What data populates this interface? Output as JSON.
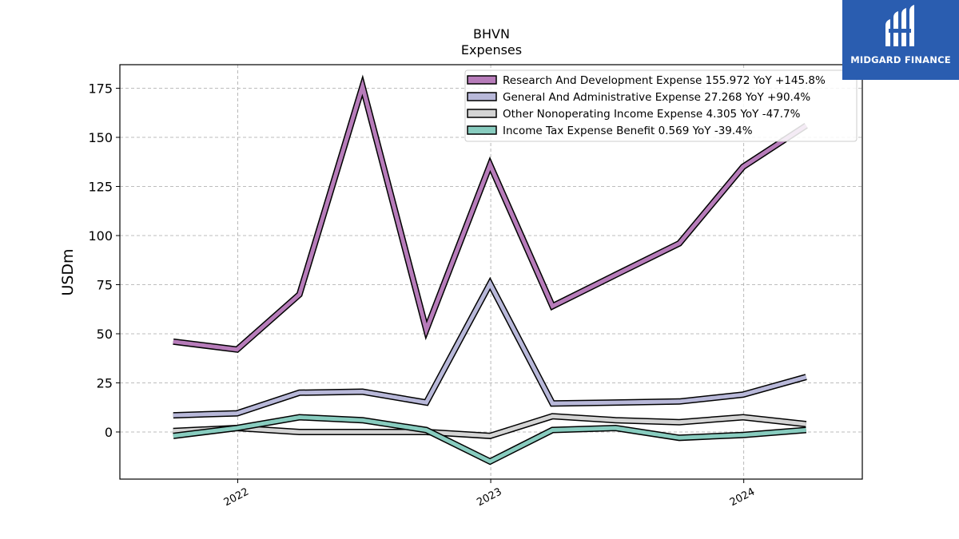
{
  "chart_data": {
    "type": "line",
    "title": [
      "BHVN",
      "Expenses"
    ],
    "ylabel": "USDm",
    "xlabel": "",
    "xlim": [
      "2021-07-15",
      "2024-06-20"
    ],
    "ylim": [
      -24,
      187
    ],
    "yticks": [
      0,
      25,
      50,
      75,
      100,
      125,
      150,
      175
    ],
    "xticks": [
      {
        "date": "2022-01-01",
        "label": "2022"
      },
      {
        "date": "2023-01-01",
        "label": "2023"
      },
      {
        "date": "2024-01-01",
        "label": "2024"
      }
    ],
    "grid": true,
    "legend_position": "top-right",
    "x": [
      "2021-09-30",
      "2021-12-31",
      "2022-03-31",
      "2022-06-30",
      "2022-09-30",
      "2022-12-31",
      "2023-03-31",
      "2023-06-30",
      "2023-09-30",
      "2023-12-31",
      "2024-03-31"
    ],
    "series": [
      {
        "name": "Research And Development Expense",
        "legend": "Research And Development Expense  155.972 YoY +145.8%",
        "color": "#b77cba",
        "values": [
          46,
          42,
          70,
          176,
          52,
          136,
          64,
          80,
          96,
          135,
          156
        ]
      },
      {
        "name": "General And Administrative Expense",
        "legend": "General And Administrative Expense  27.268 YoY +90.4%",
        "color": "#b8b8d9",
        "values": [
          8.5,
          9.5,
          20,
          20.5,
          15,
          75.5,
          14.5,
          15,
          15.5,
          19,
          28
        ]
      },
      {
        "name": "Other Nonoperating Income Expense",
        "legend": "Other Nonoperating Income Expense  4.305 YoY -47.7%",
        "color": "#d4d4d4",
        "values": [
          0.5,
          2,
          0,
          0,
          0,
          -2,
          8,
          6,
          5,
          7.5,
          4
        ]
      },
      {
        "name": "Income Tax Expense Benefit",
        "legend": "Income Tax Expense Benefit  0.569 YoY -39.4%",
        "color": "#88ccbf",
        "values": [
          -2,
          2,
          7.5,
          6,
          1,
          -15,
          1,
          2,
          -3,
          -1.5,
          1
        ]
      }
    ]
  },
  "logo": {
    "text": "MIDGARD FINANCE"
  }
}
